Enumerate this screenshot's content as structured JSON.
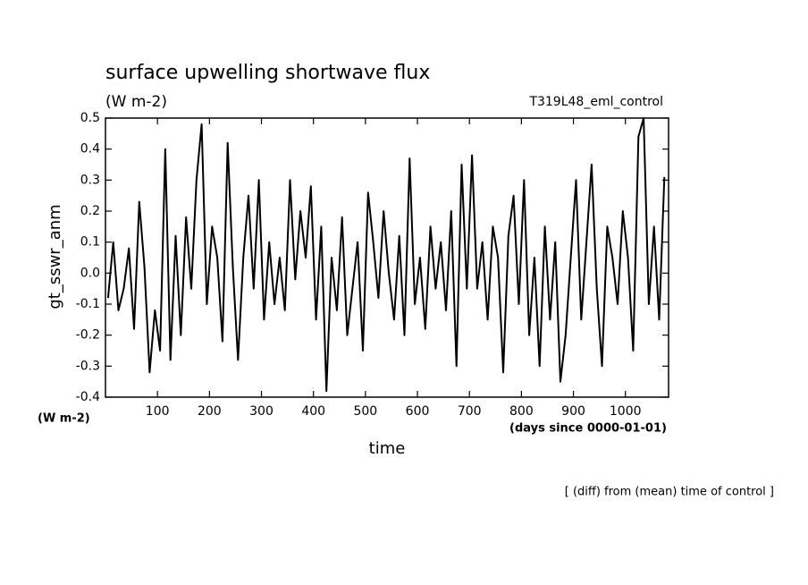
{
  "chart_data": {
    "type": "line",
    "title": "surface upwelling shortwave flux",
    "units": "(W m-2)",
    "experiment": "T319L48_eml_control",
    "ylabel": "gt_sswr_anm",
    "yunits": "(W m-2)",
    "xunits": "(days since 0000-01-01)",
    "xlabel": "time",
    "note": "[ (diff) from (mean) time of control ]",
    "xlim": [
      0,
      1083
    ],
    "xticks": [
      100,
      200,
      300,
      400,
      500,
      600,
      700,
      800,
      900,
      1000
    ],
    "ylim": [
      -0.4,
      0.5
    ],
    "yticks": [
      -0.4,
      -0.3,
      -0.2,
      -0.1,
      {
        "value": 0,
        "label": "0.0"
      },
      0.1,
      0.2,
      0.3,
      0.4,
      0.5
    ],
    "x": [
      5,
      15,
      25,
      35,
      45,
      55,
      65,
      75,
      85,
      95,
      105,
      115,
      125,
      135,
      145,
      155,
      165,
      175,
      185,
      195,
      205,
      215,
      225,
      235,
      245,
      255,
      265,
      275,
      285,
      295,
      305,
      315,
      325,
      335,
      345,
      355,
      365,
      375,
      385,
      395,
      405,
      415,
      425,
      435,
      445,
      455,
      465,
      475,
      485,
      495,
      505,
      515,
      525,
      535,
      545,
      555,
      565,
      575,
      585,
      595,
      605,
      615,
      625,
      635,
      645,
      655,
      665,
      675,
      685,
      695,
      705,
      715,
      725,
      735,
      745,
      755,
      765,
      775,
      785,
      795,
      805,
      815,
      825,
      835,
      845,
      855,
      865,
      875,
      885,
      895,
      905,
      915,
      925,
      935,
      945,
      955,
      965,
      975,
      985,
      995,
      1005,
      1015,
      1025,
      1035,
      1045,
      1055,
      1065,
      1075
    ],
    "series": [
      {
        "color": "#000000",
        "values": [
          -0.08,
          0.1,
          -0.12,
          -0.05,
          0.08,
          -0.18,
          0.23,
          0.02,
          -0.32,
          -0.12,
          -0.25,
          0.4,
          -0.28,
          0.12,
          -0.2,
          0.18,
          -0.05,
          0.3,
          0.48,
          -0.1,
          0.15,
          0.05,
          -0.22,
          0.42,
          0.02,
          -0.28,
          0.05,
          0.25,
          -0.05,
          0.3,
          -0.15,
          0.1,
          -0.1,
          0.05,
          -0.12,
          0.3,
          -0.02,
          0.2,
          0.05,
          0.28,
          -0.15,
          0.15,
          -0.38,
          0.05,
          -0.12,
          0.18,
          -0.2,
          -0.05,
          0.1,
          -0.25,
          0.26,
          0.1,
          -0.08,
          0.2,
          0.0,
          -0.15,
          0.12,
          -0.2,
          0.37,
          -0.1,
          0.05,
          -0.18,
          0.15,
          -0.05,
          0.1,
          -0.12,
          0.2,
          -0.3,
          0.35,
          -0.05,
          0.38,
          -0.05,
          0.1,
          -0.15,
          0.15,
          0.05,
          -0.32,
          0.12,
          0.25,
          -0.1,
          0.3,
          -0.2,
          0.05,
          -0.3,
          0.15,
          -0.15,
          0.1,
          -0.35,
          -0.2,
          0.05,
          0.3,
          -0.15,
          0.1,
          0.35,
          -0.05,
          -0.3,
          0.15,
          0.05,
          -0.1,
          0.2,
          0.05,
          -0.25,
          0.44,
          0.5,
          -0.1,
          0.15,
          -0.15,
          0.31
        ]
      }
    ]
  }
}
